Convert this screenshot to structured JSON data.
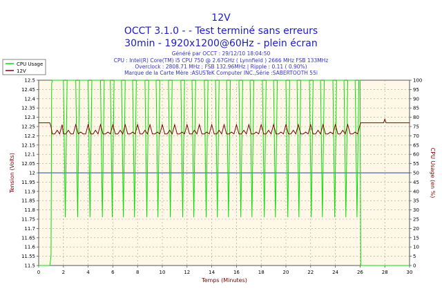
{
  "header": {
    "title": "12V",
    "subtitle1": "OCCT 3.1.0 -  - Test terminé sans erreurs",
    "subtitle2": "30min - 1920x1200@60Hz - plein écran"
  },
  "info": {
    "line1": "Généré par OCCT : 29/12/10 18:04:50",
    "line2": "CPU : Intel(R) Core(TM) i5 CPU 750 @ 2.67GHz ( Lynnfield ) 2666 MHz FSB 133MHz",
    "line3": "Overclock : 2808.71 MHz ; FSB 132.96MHz | Ripple : 0.11 ( 0.90%)",
    "line4": "Marque de la Carte Mère :ASUSTeK Computer INC.,Série :SABERTOOTH 55i"
  },
  "colors": {
    "title": "#1a1acc",
    "info": "#3333cc",
    "voltage": "#7a0000",
    "cpu": "#00e000",
    "reference": "#1f3fbf",
    "plot_bg": "#fff8e8",
    "grid": "#a0a080"
  },
  "chart_data": {
    "type": "line",
    "xlabel": "Temps (Minutes)",
    "ylabel": "Tension (Volts)",
    "y2label": "CPU Usage (en %)",
    "xlim": [
      0,
      30
    ],
    "ylim": [
      11.5,
      12.5
    ],
    "y2lim": [
      0,
      100
    ],
    "x_ticks": [
      0,
      2,
      4,
      6,
      8,
      10,
      12,
      14,
      16,
      18,
      20,
      22,
      24,
      26,
      28,
      30
    ],
    "y_ticks": [
      11.5,
      11.55,
      11.6,
      11.65,
      11.7,
      11.75,
      11.8,
      11.85,
      11.9,
      11.95,
      12,
      12.05,
      12.1,
      12.15,
      12.2,
      12.25,
      12.3,
      12.35,
      12.4,
      12.45,
      12.5
    ],
    "y2_ticks": [
      0,
      5,
      10,
      15,
      20,
      25,
      30,
      35,
      40,
      45,
      50,
      55,
      60,
      65,
      70,
      75,
      80,
      85,
      90,
      95,
      100
    ],
    "reference_line": 12.0,
    "grid": true,
    "legend_position": "top-left",
    "series": [
      {
        "name": "CPU Usage",
        "axis": "right",
        "x": [
          0,
          0.9,
          1.0,
          1.05,
          1.1,
          1.15,
          1.2,
          1.5,
          1.8,
          2.0,
          2.15,
          2.3,
          2.5,
          2.7,
          3.0,
          3.15,
          3.3,
          3.7,
          4.0,
          4.15,
          4.3,
          4.7,
          5.0,
          5.15,
          5.3,
          5.6,
          5.8,
          5.95,
          6.1,
          6.5,
          6.7,
          6.85,
          7.0,
          7.4,
          7.6,
          7.75,
          7.9,
          8.4,
          8.6,
          8.75,
          8.9,
          9.3,
          9.5,
          9.65,
          9.8,
          10.3,
          10.5,
          10.65,
          10.8,
          11.3,
          11.5,
          11.65,
          11.8,
          12.2,
          12.4,
          12.55,
          12.7,
          13.2,
          13.4,
          13.55,
          13.7,
          14.1,
          14.3,
          14.45,
          14.6,
          15.0,
          15.2,
          15.35,
          15.5,
          16.0,
          16.2,
          16.35,
          16.5,
          16.9,
          17.1,
          17.25,
          17.4,
          17.9,
          18.1,
          18.25,
          18.4,
          18.8,
          19.0,
          19.15,
          19.3,
          19.8,
          20.0,
          20.15,
          20.3,
          20.7,
          20.9,
          21.05,
          21.2,
          21.7,
          21.9,
          22.05,
          22.2,
          22.6,
          22.8,
          22.95,
          23.1,
          23.6,
          23.8,
          23.95,
          24.1,
          24.5,
          24.7,
          24.85,
          25.0,
          25.4,
          25.6,
          25.75,
          25.9,
          26.0,
          26.05,
          30
        ],
        "values": [
          0,
          0,
          5,
          98,
          100,
          100,
          100,
          100,
          100,
          100,
          26,
          100,
          100,
          100,
          100,
          26,
          100,
          100,
          100,
          26,
          100,
          100,
          100,
          26,
          100,
          100,
          100,
          26,
          100,
          100,
          100,
          26,
          100,
          100,
          100,
          26,
          100,
          100,
          100,
          26,
          100,
          100,
          100,
          26,
          100,
          100,
          100,
          26,
          100,
          100,
          100,
          26,
          100,
          100,
          100,
          26,
          100,
          100,
          100,
          26,
          100,
          100,
          100,
          26,
          100,
          100,
          100,
          26,
          100,
          100,
          100,
          26,
          100,
          100,
          100,
          26,
          100,
          100,
          100,
          26,
          100,
          100,
          100,
          26,
          100,
          100,
          100,
          26,
          100,
          100,
          100,
          26,
          100,
          100,
          100,
          26,
          100,
          100,
          100,
          26,
          100,
          100,
          100,
          26,
          100,
          100,
          100,
          26,
          100,
          100,
          100,
          26,
          100,
          100,
          0,
          0
        ]
      },
      {
        "name": "12V",
        "axis": "left",
        "x": [
          0,
          0.9,
          1.0,
          1.1,
          1.3,
          1.5,
          1.7,
          1.9,
          2.0,
          2.2,
          2.4,
          2.6,
          2.8,
          3.0,
          3.2,
          3.4,
          3.6,
          3.8,
          4.0,
          4.2,
          4.4,
          4.6,
          4.8,
          5.0,
          5.2,
          5.4,
          5.6,
          5.8,
          6.0,
          6.2,
          6.4,
          6.6,
          6.8,
          7.0,
          7.2,
          7.4,
          7.6,
          7.8,
          8.0,
          8.2,
          8.4,
          8.6,
          8.8,
          9.0,
          9.2,
          9.4,
          9.6,
          9.8,
          10.0,
          10.2,
          10.4,
          10.6,
          10.8,
          11.0,
          11.2,
          11.4,
          11.6,
          11.8,
          12.0,
          12.2,
          12.4,
          12.6,
          12.8,
          13.0,
          13.2,
          13.4,
          13.6,
          13.8,
          14.0,
          14.2,
          14.4,
          14.6,
          14.8,
          15.0,
          15.2,
          15.4,
          15.6,
          15.8,
          16.0,
          16.2,
          16.4,
          16.6,
          16.8,
          17.0,
          17.2,
          17.4,
          17.6,
          17.8,
          18.0,
          18.2,
          18.4,
          18.6,
          18.8,
          19.0,
          19.2,
          19.4,
          19.6,
          19.8,
          20.0,
          20.2,
          20.4,
          20.6,
          20.8,
          21.0,
          21.2,
          21.4,
          21.6,
          21.8,
          22.0,
          22.2,
          22.4,
          22.6,
          22.8,
          23.0,
          23.2,
          23.4,
          23.6,
          23.8,
          24.0,
          24.2,
          24.4,
          24.6,
          24.8,
          25.0,
          25.2,
          25.4,
          25.6,
          25.8,
          26.0,
          26.05,
          27.9,
          28.0,
          28.1,
          30
        ],
        "values": [
          12.27,
          12.27,
          12.25,
          12.21,
          12.21,
          12.23,
          12.21,
          12.26,
          12.21,
          12.21,
          12.23,
          12.21,
          12.21,
          12.26,
          12.21,
          12.22,
          12.21,
          12.21,
          12.26,
          12.21,
          12.21,
          12.23,
          12.21,
          12.26,
          12.21,
          12.21,
          12.22,
          12.21,
          12.26,
          12.21,
          12.21,
          12.23,
          12.21,
          12.26,
          12.21,
          12.21,
          12.22,
          12.21,
          12.26,
          12.21,
          12.21,
          12.23,
          12.21,
          12.26,
          12.21,
          12.21,
          12.22,
          12.21,
          12.26,
          12.21,
          12.21,
          12.23,
          12.21,
          12.26,
          12.21,
          12.21,
          12.22,
          12.21,
          12.26,
          12.21,
          12.21,
          12.23,
          12.21,
          12.26,
          12.21,
          12.21,
          12.22,
          12.21,
          12.26,
          12.21,
          12.21,
          12.23,
          12.21,
          12.26,
          12.21,
          12.21,
          12.22,
          12.21,
          12.26,
          12.21,
          12.21,
          12.23,
          12.21,
          12.26,
          12.21,
          12.21,
          12.22,
          12.21,
          12.26,
          12.21,
          12.21,
          12.23,
          12.21,
          12.26,
          12.21,
          12.21,
          12.22,
          12.21,
          12.26,
          12.21,
          12.21,
          12.23,
          12.21,
          12.26,
          12.21,
          12.21,
          12.22,
          12.21,
          12.26,
          12.21,
          12.21,
          12.23,
          12.21,
          12.26,
          12.21,
          12.21,
          12.22,
          12.21,
          12.26,
          12.21,
          12.21,
          12.23,
          12.21,
          12.26,
          12.21,
          12.21,
          12.22,
          12.21,
          12.26,
          12.27,
          12.27,
          12.29,
          12.27,
          12.27
        ]
      }
    ]
  }
}
